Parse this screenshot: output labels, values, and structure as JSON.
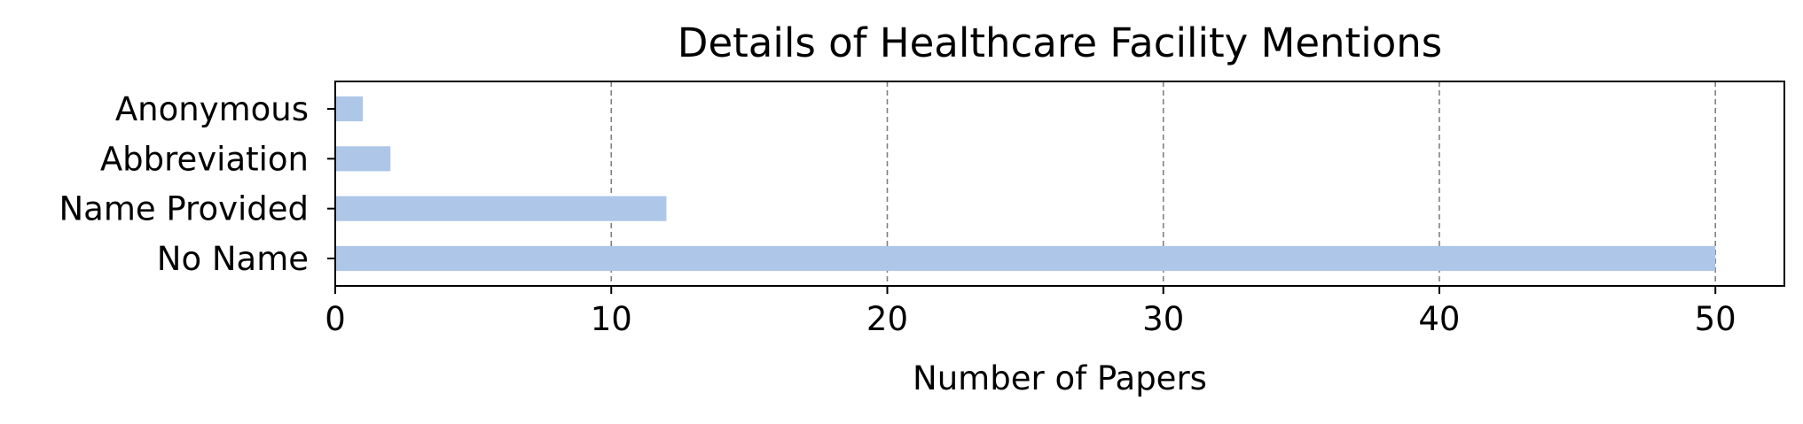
{
  "chart_data": {
    "type": "bar",
    "orientation": "horizontal",
    "title": "Details of Healthcare Facility Mentions",
    "xlabel": "Number of Papers",
    "ylabel": "",
    "categories": [
      "Anonymous",
      "Abbreviation",
      "Name Provided",
      "No Name"
    ],
    "values": [
      1,
      2,
      12,
      50
    ],
    "xlim": [
      0,
      52.5
    ],
    "xticks": [
      0,
      10,
      20,
      30,
      40,
      50
    ],
    "grid": "x-dashed",
    "legend": "none",
    "colors": {
      "bar": "#aec7e8",
      "grid": "#808080",
      "axis": "#000000"
    }
  }
}
